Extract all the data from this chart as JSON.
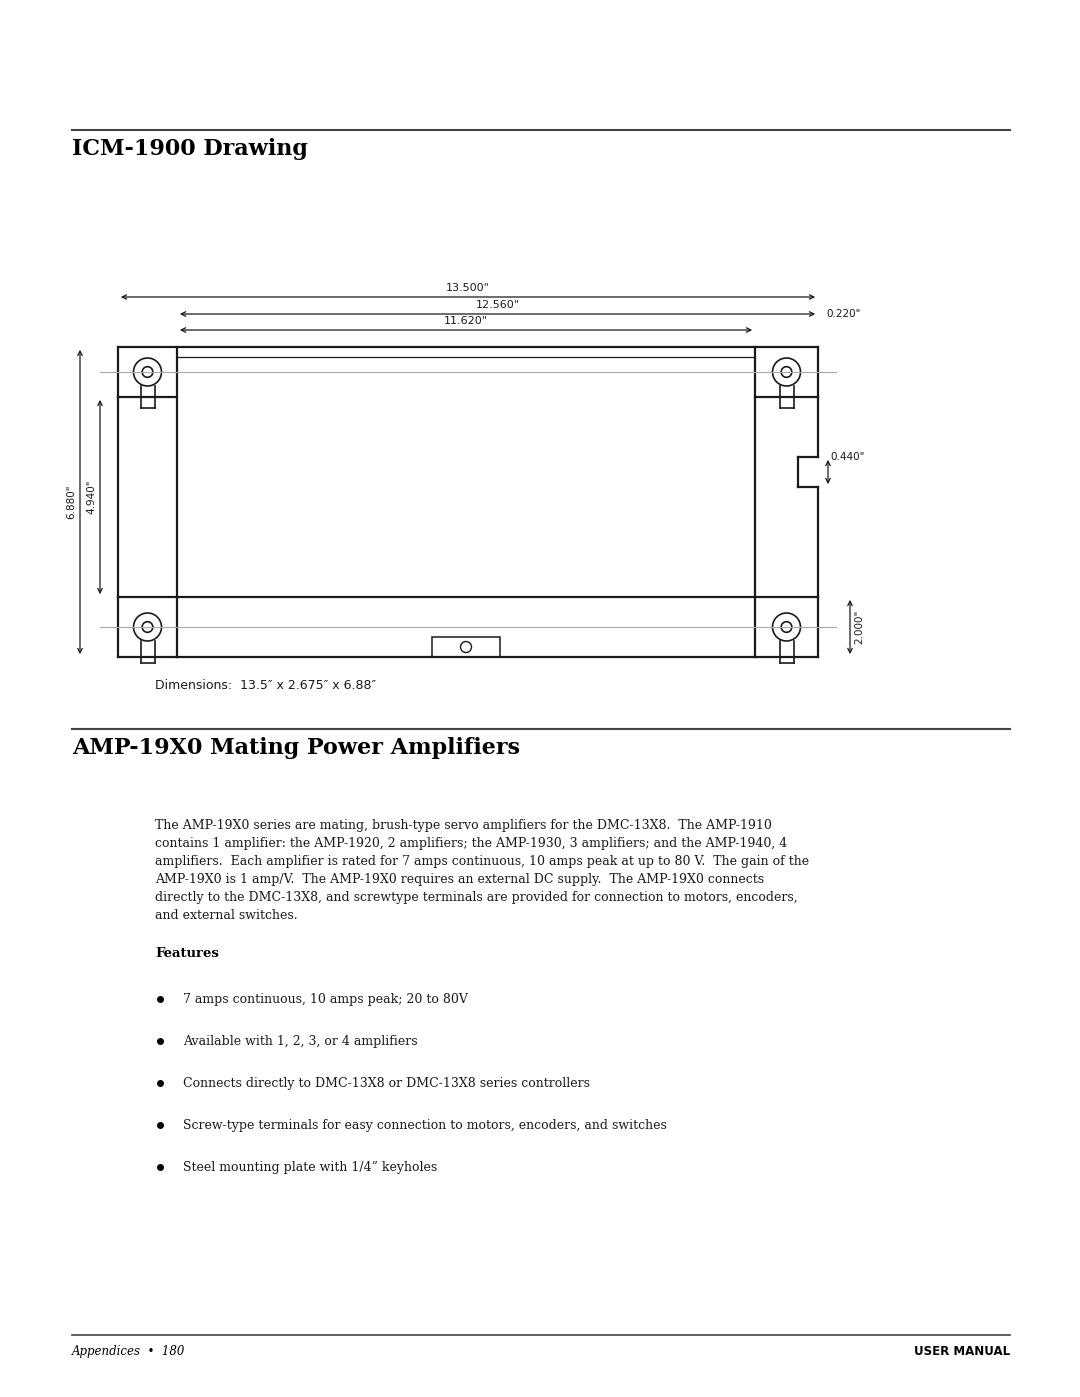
{
  "page_width": 10.8,
  "page_height": 13.97,
  "bg_color": "#ffffff",
  "line_color": "#1a1a1a",
  "gray_line_color": "#aaaaaa",
  "section1_title": "ICM-1900 Drawing",
  "section2_title": "AMP-19X0 Mating Power Amplifiers",
  "dim_text_13500": "13.500\"",
  "dim_text_12560": "12.560\"",
  "dim_text_11620": "11.620\"",
  "dim_text_0220": "0.220\"",
  "dim_text_0440": "0.440\"",
  "dim_text_6880": "6.880\"",
  "dim_text_4940": "4.940\"",
  "dim_text_2000": "2.000\"",
  "dimensions_note": "Dimensions:  13.5″ x 2.675″ x 6.88″",
  "footer_left": "Appendices  •  180",
  "footer_right": "USER MANUAL",
  "para1": "The AMP-19X0 series are mating, brush-type servo amplifiers for the DMC-13X8.  The AMP-1910\ncontains 1 amplifier: the AMP-1920, 2 amplifiers; the AMP-1930, 3 amplifiers; and the AMP-1940, 4\namplifiers.  Each amplifier is rated for 7 amps continuous, 10 amps peak at up to 80 V.  The gain of the\nAMP-19X0 is 1 amp/V.  The AMP-19X0 requires an external DC supply.  The AMP-19X0 connects\ndirectly to the DMC-13X8, and screwtype terminals are provided for connection to motors, encoders,\nand external switches.",
  "features_title": "Features",
  "bullet_items": [
    "7 amps continuous, 10 amps peak; 20 to 80V",
    "Available with 1, 2, 3, or 4 amplifiers",
    "Connects directly to DMC-13X8 or DMC-13X8 series controllers",
    "Screw-type terminals for easy connection to motors, encoders, and switches",
    "Steel mounting plate with 1/4” keyholes"
  ]
}
